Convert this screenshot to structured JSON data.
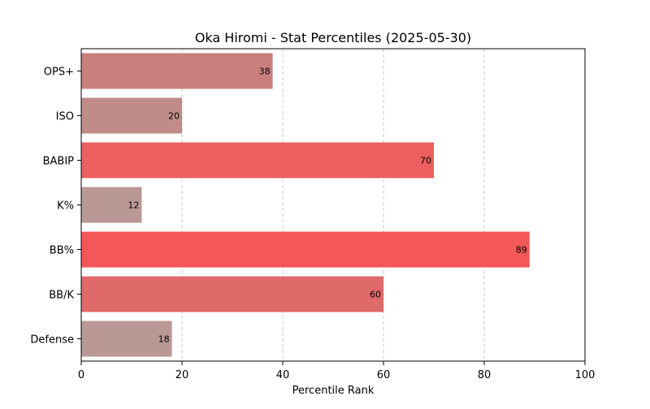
{
  "chart_data": {
    "type": "bar",
    "orientation": "horizontal",
    "title": "Oka Hiromi - Stat Percentiles (2025-05-30)",
    "xlabel": "Percentile Rank",
    "ylabel": "",
    "xlim": [
      0,
      100
    ],
    "xticks": [
      0,
      20,
      40,
      60,
      80,
      100
    ],
    "grid": "vertical dashed",
    "categories": [
      "OPS+",
      "ISO",
      "BABIP",
      "K%",
      "BB%",
      "BB/K",
      "Defense"
    ],
    "values": [
      38,
      20,
      70,
      12,
      89,
      60,
      18
    ],
    "colors": [
      "#c97f7e",
      "#c08c8a",
      "#ec5f60",
      "#b99896",
      "#f35758",
      "#e06a69",
      "#b99896"
    ],
    "data_labels": [
      "38",
      "20",
      "70",
      "12",
      "89",
      "60",
      "18"
    ]
  }
}
